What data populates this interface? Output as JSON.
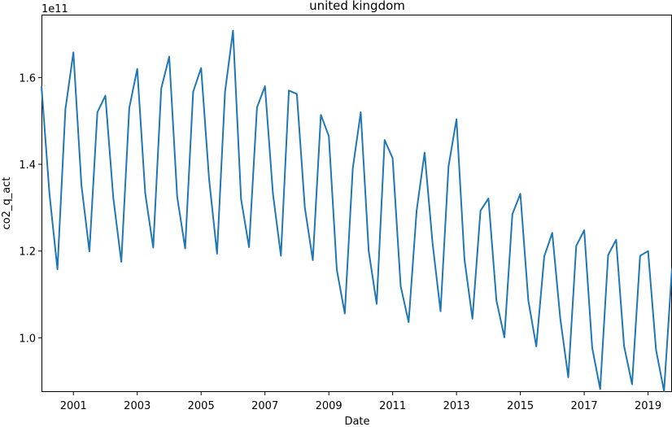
{
  "chart_data": {
    "type": "line",
    "title": "united kingdom",
    "xlabel": "Date",
    "ylabel": "co2_q_act",
    "y_offset_label": "1e11",
    "color": "#1f77b4",
    "y_scale_factor": 100000000000,
    "xlim": [
      2000.0,
      2019.75
    ],
    "ylim": [
      0.875,
      1.745
    ],
    "x_ticks": [
      2001,
      2003,
      2005,
      2007,
      2009,
      2011,
      2013,
      2015,
      2017,
      2019
    ],
    "x_tick_labels": [
      "2001",
      "2003",
      "2005",
      "2007",
      "2009",
      "2011",
      "2013",
      "2015",
      "2017",
      "2019"
    ],
    "y_ticks": [
      1.0,
      1.2,
      1.4,
      1.6
    ],
    "y_tick_labels": [
      "1.0",
      "1.2",
      "1.4",
      "1.6"
    ],
    "grid": false,
    "series": [
      {
        "x": [
          2000.0,
          2000.25,
          2000.5,
          2000.75,
          2001.0,
          2001.25,
          2001.5,
          2001.75,
          2002.0,
          2002.25,
          2002.5,
          2002.75,
          2003.0,
          2003.25,
          2003.5,
          2003.75,
          2004.0,
          2004.25,
          2004.5,
          2004.75,
          2005.0,
          2005.25,
          2005.5,
          2005.75,
          2006.0,
          2006.25,
          2006.5,
          2006.75,
          2007.0,
          2007.25,
          2007.5,
          2007.75,
          2008.0,
          2008.25,
          2008.5,
          2008.75,
          2009.0,
          2009.25,
          2009.5,
          2009.75,
          2010.0,
          2010.25,
          2010.5,
          2010.75,
          2011.0,
          2011.25,
          2011.5,
          2011.75,
          2012.0,
          2012.25,
          2012.5,
          2012.75,
          2013.0,
          2013.25,
          2013.5,
          2013.75,
          2014.0,
          2014.25,
          2014.5,
          2014.75,
          2015.0,
          2015.25,
          2015.5,
          2015.75,
          2016.0,
          2016.25,
          2016.5,
          2016.75,
          2017.0,
          2017.25,
          2017.5,
          2017.75,
          2018.0,
          2018.25,
          2018.5,
          2018.75,
          2019.0,
          2019.25,
          2019.5,
          2019.75
        ],
        "values": [
          1.58,
          1.332,
          1.158,
          1.527,
          1.658,
          1.352,
          1.199,
          1.52,
          1.558,
          1.322,
          1.175,
          1.53,
          1.62,
          1.333,
          1.208,
          1.575,
          1.648,
          1.325,
          1.206,
          1.567,
          1.622,
          1.366,
          1.194,
          1.567,
          1.708,
          1.32,
          1.209,
          1.531,
          1.58,
          1.332,
          1.189,
          1.57,
          1.562,
          1.3,
          1.179,
          1.514,
          1.465,
          1.157,
          1.056,
          1.39,
          1.52,
          1.2,
          1.078,
          1.456,
          1.414,
          1.119,
          1.036,
          1.293,
          1.427,
          1.218,
          1.061,
          1.395,
          1.504,
          1.181,
          1.044,
          1.293,
          1.321,
          1.086,
          1.001,
          1.285,
          1.332,
          1.086,
          0.98,
          1.188,
          1.242,
          1.044,
          0.909,
          1.212,
          1.248,
          0.977,
          0.882,
          1.191,
          1.226,
          0.981,
          0.893,
          1.189,
          1.2,
          0.972,
          0.877,
          1.16
        ]
      }
    ]
  }
}
